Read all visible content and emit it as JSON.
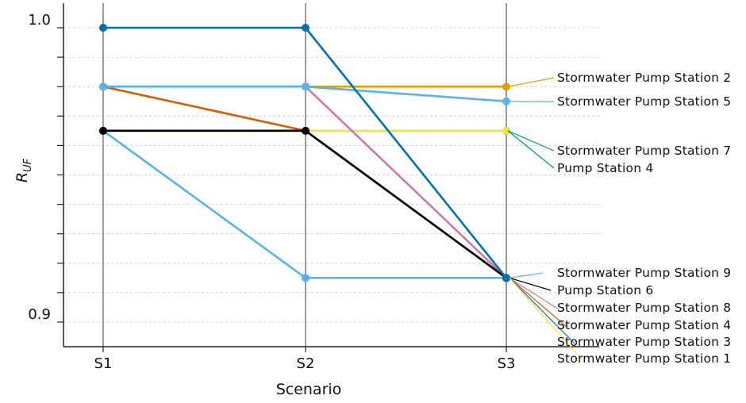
{
  "chart_data": {
    "type": "line",
    "xlabel": "Scenario",
    "ylabel": {
      "main": "R",
      "sub": "UF"
    },
    "categories": [
      "S1",
      "S2",
      "S3"
    ],
    "ylim": [
      0.895,
      1.005
    ],
    "yticks": [
      0.9,
      0.91,
      0.92,
      0.93,
      0.94,
      0.95,
      0.96,
      0.97,
      0.98,
      0.99,
      1.0
    ],
    "ytick_labels": [
      {
        "value": 0.9,
        "label": "0.9"
      },
      {
        "value": 1.0,
        "label": "1.0"
      }
    ],
    "grid": "horizontal dashed",
    "series": [
      {
        "name": "Stormwater Pump Station 2",
        "color": "#E69F00",
        "values": [
          0.98,
          0.98,
          0.98
        ]
      },
      {
        "name": "Stormwater Pump Station 5",
        "color": "#56B4E9",
        "values": [
          0.98,
          0.98,
          0.975
        ]
      },
      {
        "name": "Stormwater Pump Station 7",
        "color": "#F0E442",
        "values": [
          0.965,
          0.965,
          0.965
        ]
      },
      {
        "name": "Pump Station 4",
        "color": "#009E73",
        "values": [
          0.965,
          0.965,
          0.965
        ]
      },
      {
        "name": "Stormwater Pump Station 9",
        "color": "#56B4E9",
        "values": [
          0.965,
          0.915,
          0.915
        ]
      },
      {
        "name": "Pump Station 6",
        "color": "#000000",
        "values": [
          0.965,
          0.965,
          0.915
        ]
      },
      {
        "name": "Stormwater Pump Station 8",
        "color": "#CC79A7",
        "values": [
          0.98,
          0.98,
          0.915
        ]
      },
      {
        "name": "Stormwater Pump Station 4",
        "color": "#D55E00",
        "values": [
          0.98,
          0.965,
          0.915
        ]
      },
      {
        "name": "Stormwater Pump Station 3",
        "color": "#0072B2",
        "values": [
          1.0,
          1.0,
          0.915
        ]
      },
      {
        "name": "Stormwater Pump Station 1",
        "color": "#F0E442",
        "values": [
          0.965,
          0.965,
          0.915
        ]
      }
    ]
  }
}
